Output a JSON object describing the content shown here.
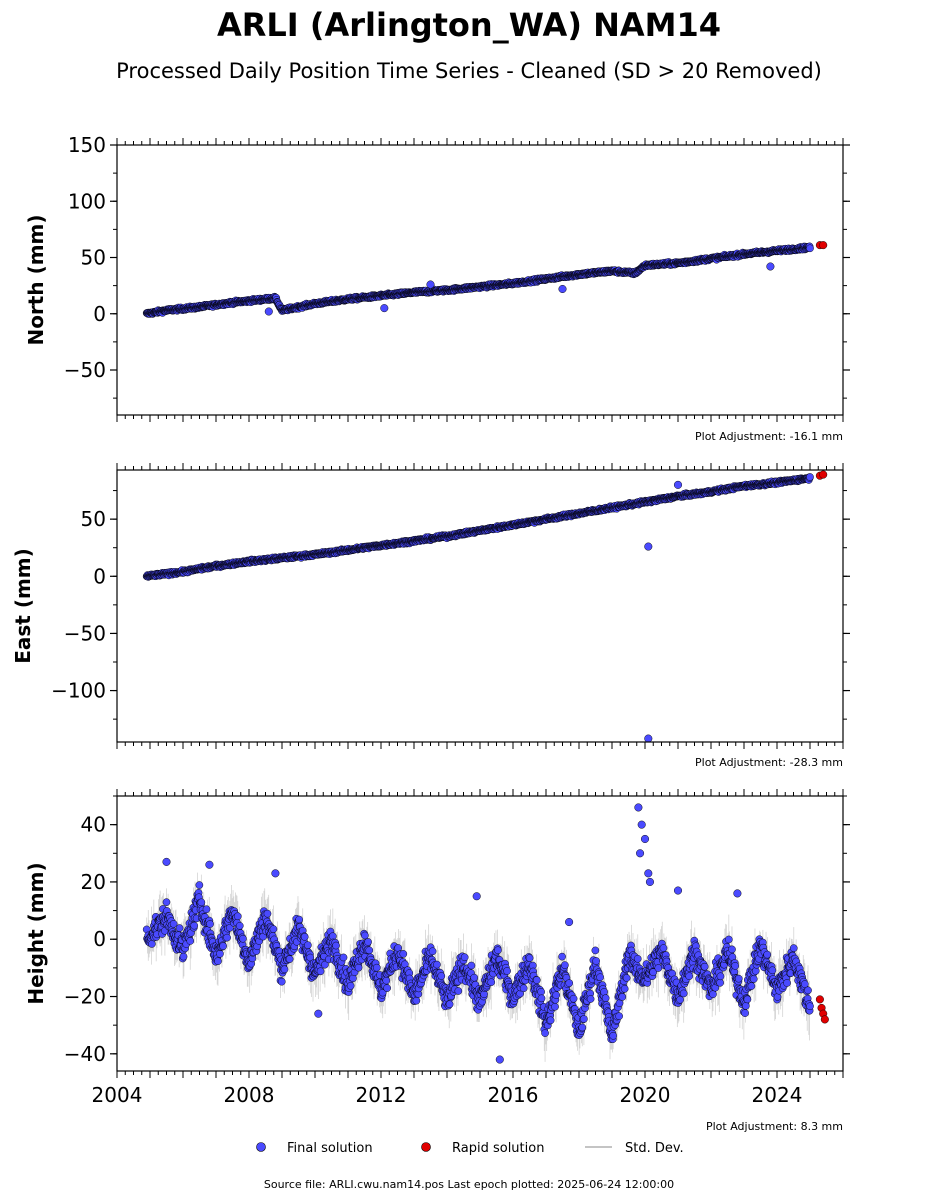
{
  "figure": {
    "title": "ARLI (Arlington_WA) NAM14",
    "subtitle": "Processed Daily Position Time Series - Cleaned (SD > 20 Removed)",
    "footer": "Source file: ARLI.cwu.nam14.pos  Last epoch plotted: 2025-06-24 12:00:00",
    "colors": {
      "final": "#4a4aff",
      "rapid": "#e00000",
      "stddev": "#b0b0b0",
      "edge": "#000000"
    }
  },
  "legend": {
    "final_label": "Final solution",
    "rapid_label": "Rapid solution",
    "std_label": "Std. Dev."
  },
  "chart_data": [
    {
      "type": "scatter",
      "ylabel": "North (mm)",
      "note": "Plot Adjustment: -16.1 mm",
      "xlim": [
        2004.0,
        2026.0
      ],
      "ylim": [
        -90,
        150
      ],
      "yticks": [
        -50,
        0,
        50,
        100,
        150
      ],
      "ytick_labels": [
        "−50",
        "0",
        "50",
        "100",
        "150"
      ],
      "xticks": [
        2004,
        2008,
        2012,
        2016,
        2020,
        2024
      ],
      "xtick_labels": [],
      "series": [
        {
          "name": "Final solution",
          "x": [
            2004.9,
            2005.5,
            2006.5,
            2007.5,
            2008.5,
            2008.8,
            2009.0,
            2010.0,
            2011.0,
            2012.0,
            2013.0,
            2014.0,
            2015.0,
            2016.0,
            2017.0,
            2018.0,
            2019.0,
            2019.7,
            2020.0,
            2021.0,
            2022.0,
            2023.0,
            2024.0,
            2025.0
          ],
          "y": [
            0,
            3,
            6,
            10,
            13,
            14,
            3,
            9,
            13,
            16,
            19,
            21,
            24,
            27,
            31,
            35,
            38,
            36,
            43,
            45,
            49,
            53,
            56,
            59
          ]
        },
        {
          "name": "Rapid solution",
          "x": [
            2025.3,
            2025.4
          ],
          "y": [
            61,
            61
          ]
        }
      ],
      "outliers": {
        "x": [
          2008.6,
          2012.1,
          2013.5,
          2017.5,
          2023.8
        ],
        "y": [
          2,
          5,
          26,
          22,
          42
        ]
      }
    },
    {
      "type": "scatter",
      "ylabel": "East (mm)",
      "note": "Plot Adjustment: -28.3 mm",
      "xlim": [
        2004.0,
        2026.0
      ],
      "ylim": [
        -145,
        93
      ],
      "yticks": [
        -100,
        -50,
        0,
        50
      ],
      "ytick_labels": [
        "−100",
        "−50",
        "0",
        "50"
      ],
      "xticks": [
        2004,
        2008,
        2012,
        2016,
        2020,
        2024
      ],
      "xtick_labels": [],
      "series": [
        {
          "name": "Final solution",
          "x": [
            2004.9,
            2006.0,
            2007.0,
            2008.0,
            2009.0,
            2010.0,
            2011.0,
            2012.0,
            2013.0,
            2014.0,
            2015.0,
            2016.0,
            2017.0,
            2018.0,
            2019.0,
            2020.0,
            2021.0,
            2022.0,
            2023.0,
            2024.0,
            2025.0
          ],
          "y": [
            0,
            4,
            9,
            13,
            16,
            19,
            23,
            27,
            31,
            35,
            40,
            45,
            50,
            55,
            60,
            65,
            70,
            74,
            79,
            82,
            86
          ]
        },
        {
          "name": "Rapid solution",
          "x": [
            2025.3,
            2025.4
          ],
          "y": [
            88,
            89
          ]
        }
      ],
      "outliers": {
        "x": [
          2020.1,
          2020.1,
          2021.0
        ],
        "y": [
          26,
          -142,
          80
        ]
      }
    },
    {
      "type": "scatter",
      "ylabel": "Height (mm)",
      "note": "Plot Adjustment: 8.3 mm",
      "xlim": [
        2004.0,
        2026.0
      ],
      "ylim": [
        -46,
        50
      ],
      "yticks": [
        -40,
        -20,
        0,
        20,
        40
      ],
      "ytick_labels": [
        "−40",
        "−20",
        "0",
        "20",
        "40"
      ],
      "xticks": [
        2004,
        2008,
        2012,
        2016,
        2020,
        2024
      ],
      "xtick_labels": [
        "2004",
        "2008",
        "2012",
        "2016",
        "2020",
        "2024"
      ],
      "series": [
        {
          "name": "Final solution",
          "x": [
            2004.9,
            2005.5,
            2006.0,
            2006.5,
            2007.0,
            2007.5,
            2008.0,
            2008.5,
            2009.0,
            2009.5,
            2010.0,
            2010.5,
            2011.0,
            2011.5,
            2012.0,
            2012.5,
            2013.0,
            2013.5,
            2014.0,
            2014.5,
            2015.0,
            2015.5,
            2016.0,
            2016.5,
            2017.0,
            2017.5,
            2018.0,
            2018.5,
            2019.0,
            2019.5,
            2020.0,
            2020.5,
            2021.0,
            2021.5,
            2022.0,
            2022.5,
            2023.0,
            2023.5,
            2024.0,
            2024.5,
            2025.0
          ],
          "y": [
            0,
            8,
            -4,
            14,
            -6,
            10,
            -8,
            8,
            -10,
            4,
            -12,
            0,
            -16,
            0,
            -18,
            -4,
            -20,
            -6,
            -22,
            -8,
            -22,
            -6,
            -20,
            -8,
            -30,
            -10,
            -32,
            -8,
            -34,
            -6,
            -14,
            -4,
            -20,
            -4,
            -18,
            -4,
            -22,
            -2,
            -18,
            -6,
            -24
          ]
        },
        {
          "name": "Rapid solution",
          "x": [
            2025.3,
            2025.35,
            2025.4,
            2025.45
          ],
          "y": [
            -21,
            -24,
            -26,
            -28
          ]
        }
      ],
      "outliers": {
        "x": [
          2005.5,
          2006.8,
          2008.8,
          2010.1,
          2014.9,
          2015.6,
          2017.7,
          2019.8,
          2019.9,
          2020.0,
          2020.1,
          2019.85,
          2020.15,
          2021.0,
          2022.8
        ],
        "y": [
          27,
          26,
          23,
          -26,
          15,
          -42,
          6,
          46,
          40,
          35,
          23,
          30,
          20,
          17,
          16
        ]
      }
    }
  ]
}
